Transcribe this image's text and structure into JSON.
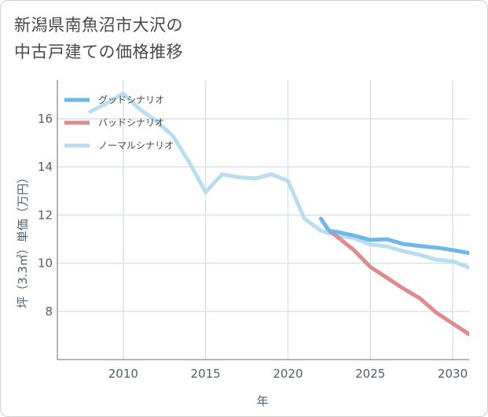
{
  "title_lines": [
    "新潟県南魚沼市大沢の",
    "中古戸建ての価格推移"
  ],
  "chart_data": {
    "type": "line",
    "xlabel": "年",
    "ylabel": "坪（3.3㎡）単価（万円）",
    "xlim": [
      2006,
      2031
    ],
    "ylim": [
      6.0,
      17.6
    ],
    "xticks": [
      2010,
      2015,
      2020,
      2025,
      2030
    ],
    "yticks": [
      8,
      10,
      12,
      14,
      16
    ],
    "grid": true,
    "legend_position": "top-left",
    "series": [
      {
        "name": "グッドシナリオ",
        "color": "#6cb8ea",
        "points": [
          [
            2022,
            11.85
          ],
          [
            2022.5,
            11.35
          ],
          [
            2023,
            11.3
          ],
          [
            2024,
            11.15
          ],
          [
            2025,
            10.97
          ],
          [
            2026,
            11.0
          ],
          [
            2027,
            10.8
          ],
          [
            2028,
            10.72
          ],
          [
            2029,
            10.65
          ],
          [
            2030,
            10.55
          ],
          [
            2031,
            10.42
          ]
        ]
      },
      {
        "name": "バッドシナリオ",
        "color": "#e0898e",
        "points": [
          [
            2022,
            11.85
          ],
          [
            2022.5,
            11.35
          ],
          [
            2023,
            11.1
          ],
          [
            2024,
            10.55
          ],
          [
            2025,
            9.85
          ],
          [
            2026,
            9.4
          ],
          [
            2027,
            8.95
          ],
          [
            2028,
            8.55
          ],
          [
            2029,
            7.95
          ],
          [
            2030,
            7.5
          ],
          [
            2031,
            7.05
          ]
        ]
      },
      {
        "name": "ノーマルシナリオ",
        "color": "#b9def0",
        "points": [
          [
            2008,
            16.3
          ],
          [
            2009,
            16.65
          ],
          [
            2010,
            17.05
          ],
          [
            2011,
            16.4
          ],
          [
            2012,
            15.9
          ],
          [
            2013,
            15.3
          ],
          [
            2014,
            14.2
          ],
          [
            2015,
            12.95
          ],
          [
            2016,
            13.7
          ],
          [
            2017,
            13.57
          ],
          [
            2018,
            13.52
          ],
          [
            2019,
            13.7
          ],
          [
            2020,
            13.42
          ],
          [
            2021,
            11.85
          ],
          [
            2022,
            11.35
          ],
          [
            2023,
            11.15
          ],
          [
            2024,
            11.05
          ],
          [
            2025,
            10.78
          ],
          [
            2026,
            10.7
          ],
          [
            2027,
            10.5
          ],
          [
            2028,
            10.35
          ],
          [
            2029,
            10.15
          ],
          [
            2030,
            10.08
          ],
          [
            2031,
            9.82
          ]
        ]
      }
    ]
  }
}
